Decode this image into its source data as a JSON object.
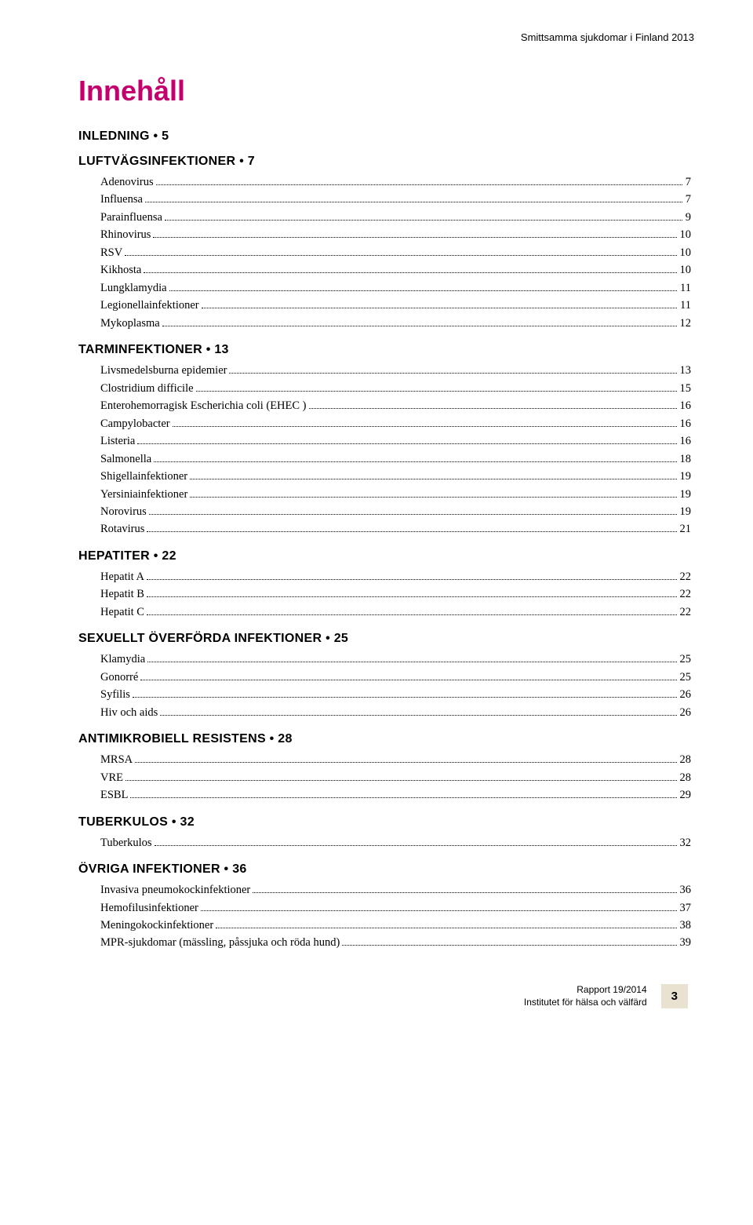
{
  "colors": {
    "accent": "#c4006e",
    "footer_box_bg": "#e9e2d0",
    "text": "#000000",
    "background": "#ffffff"
  },
  "typography": {
    "title_fontsize_pt": 27,
    "section_heading_fontsize_pt": 12,
    "entry_fontsize_pt": 11,
    "running_header_fontsize_pt": 10
  },
  "running_header": "Smittsamma sjukdomar i Finland 2013",
  "title": "Innehåll",
  "sections": [
    {
      "heading": "Inledning • 5",
      "entries": []
    },
    {
      "heading": "Luftvägsinfektioner • 7",
      "entries": [
        {
          "label": "Adenovirus",
          "page": "7"
        },
        {
          "label": "Influensa",
          "page": "7"
        },
        {
          "label": "Parainfluensa",
          "page": "9"
        },
        {
          "label": "Rhinovirus",
          "page": "10"
        },
        {
          "label": "RSV",
          "page": "10"
        },
        {
          "label": "Kikhosta",
          "page": "10"
        },
        {
          "label": "Lungklamydia",
          "page": "11"
        },
        {
          "label": "Legionellainfektioner",
          "page": "11"
        },
        {
          "label": "Mykoplasma",
          "page": "12"
        }
      ]
    },
    {
      "heading": "Tarminfektioner • 13",
      "entries": [
        {
          "label": "Livsmedelsburna epidemier",
          "page": "13"
        },
        {
          "label": "Clostridium difficile",
          "page": "15"
        },
        {
          "label": "Enterohemorragisk Escherichia coli (EHEC )",
          "page": "16"
        },
        {
          "label": "Campylobacter",
          "page": "16"
        },
        {
          "label": "Listeria",
          "page": "16"
        },
        {
          "label": "Salmonella",
          "page": "18"
        },
        {
          "label": "Shigellainfektioner",
          "page": "19"
        },
        {
          "label": "Yersiniainfektioner",
          "page": "19"
        },
        {
          "label": "Norovirus",
          "page": "19"
        },
        {
          "label": "Rotavirus",
          "page": "21"
        }
      ]
    },
    {
      "heading": "Hepatiter • 22",
      "entries": [
        {
          "label": "Hepatit A",
          "page": "22"
        },
        {
          "label": "Hepatit B",
          "page": "22"
        },
        {
          "label": "Hepatit C",
          "page": "22"
        }
      ]
    },
    {
      "heading": "Sexuellt överförda infektioner • 25",
      "entries": [
        {
          "label": "Klamydia",
          "page": "25"
        },
        {
          "label": "Gonorré",
          "page": "25"
        },
        {
          "label": "Syfilis",
          "page": "26"
        },
        {
          "label": "Hiv och aids",
          "page": "26"
        }
      ]
    },
    {
      "heading": "Antimikrobiell resistens • 28",
      "entries": [
        {
          "label": "MRSA",
          "page": "28"
        },
        {
          "label": "VRE",
          "page": "28"
        },
        {
          "label": "ESBL",
          "page": "29"
        }
      ]
    },
    {
      "heading": "Tuberkulos • 32",
      "entries": [
        {
          "label": "Tuberkulos",
          "page": "32"
        }
      ]
    },
    {
      "heading": "Övriga infektioner • 36",
      "entries": [
        {
          "label": "Invasiva pneumokockinfektioner",
          "page": "36"
        },
        {
          "label": "Hemofilusinfektioner",
          "page": "37"
        },
        {
          "label": "Meningokockinfektioner",
          "page": "38"
        },
        {
          "label": "MPR-sjukdomar (mässling, påssjuka och röda hund)",
          "page": "39"
        }
      ]
    }
  ],
  "footer": {
    "line1": "Rapport 19/2014",
    "line2": "Institutet för hälsa och välfärd",
    "page_number": "3"
  }
}
